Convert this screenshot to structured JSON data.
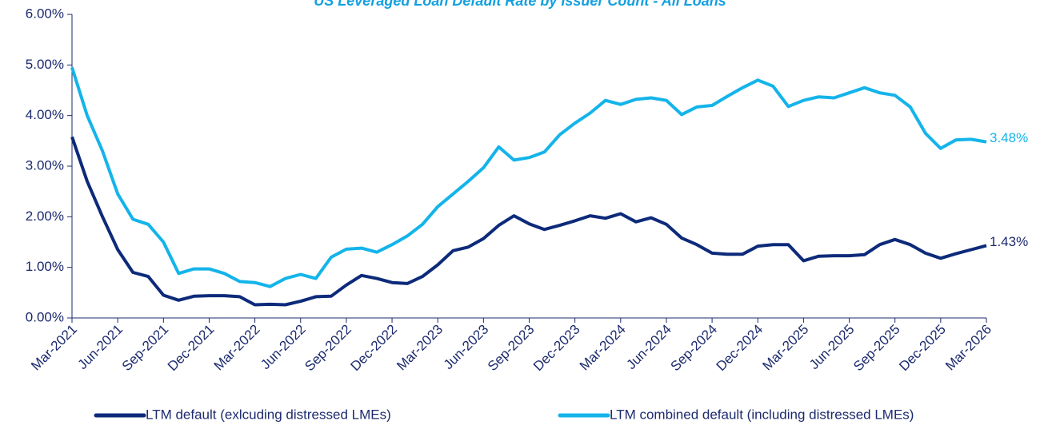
{
  "chart_data": {
    "type": "line",
    "title": "US Leveraged Loan Default Rate by Issuer Count - All Loans",
    "categories": [
      "Mar-2021",
      null,
      null,
      "Jun-2021",
      null,
      null,
      "Sep-2021",
      null,
      null,
      "Dec-2021",
      null,
      null,
      "Mar-2022",
      null,
      null,
      "Jun-2022",
      null,
      null,
      "Sep-2022",
      null,
      null,
      "Dec-2022",
      null,
      null,
      "Mar-2023",
      null,
      null,
      "Jun-2023",
      null,
      null,
      "Sep-2023",
      null,
      null,
      "Dec-2023",
      null,
      null,
      "Mar-2024",
      null,
      null,
      "Jun-2024",
      null,
      null,
      "Sep-2024",
      null,
      null,
      "Dec-2024",
      null,
      null,
      "Mar-2025",
      null,
      null,
      "Jun-2025",
      null,
      null,
      "Sep-2025",
      null,
      null,
      "Dec-2025",
      null,
      null,
      "Mar-2026"
    ],
    "series": [
      {
        "name": "LTM default (exlcuding distressed LMEs)",
        "color": "#0d2a7a",
        "values": [
          3.58,
          2.7,
          2.0,
          1.35,
          0.9,
          0.82,
          0.45,
          0.35,
          0.43,
          0.44,
          0.44,
          0.42,
          0.26,
          0.27,
          0.26,
          0.33,
          0.42,
          0.43,
          0.65,
          0.84,
          0.78,
          0.7,
          0.68,
          0.82,
          1.05,
          1.33,
          1.4,
          1.57,
          1.83,
          2.02,
          1.86,
          1.75,
          1.83,
          1.92,
          2.02,
          1.97,
          2.06,
          1.9,
          1.98,
          1.85,
          1.58,
          1.45,
          1.28,
          1.26,
          1.26,
          1.42,
          1.45,
          1.45,
          1.13,
          1.22,
          1.23,
          1.23,
          1.25,
          1.45,
          1.55,
          1.45,
          1.28,
          1.18,
          1.27,
          1.35,
          1.43
        ],
        "value_labels": [
          null,
          null,
          null,
          null,
          null,
          null,
          null,
          null,
          null,
          null,
          null,
          null,
          null,
          null,
          null,
          null,
          null,
          null,
          null,
          null,
          null,
          null,
          null,
          null,
          null,
          null,
          null,
          null,
          null,
          null,
          null,
          null,
          null,
          null,
          null,
          null,
          null,
          null,
          null,
          null,
          null,
          null,
          null,
          null,
          null,
          null,
          null,
          null,
          null,
          null,
          null,
          null,
          null,
          null,
          null,
          null,
          null,
          null,
          null,
          null,
          "1.43%"
        ]
      },
      {
        "name": "LTM combined default (including distressed LMEs)",
        "color": "#14b4ea",
        "values": [
          4.95,
          4.0,
          3.3,
          2.45,
          1.95,
          1.85,
          1.5,
          0.88,
          0.97,
          0.97,
          0.88,
          0.72,
          0.7,
          0.62,
          0.78,
          0.86,
          0.78,
          1.2,
          1.36,
          1.38,
          1.3,
          1.45,
          1.62,
          1.85,
          2.2,
          2.45,
          2.7,
          2.97,
          3.38,
          3.12,
          3.17,
          3.28,
          3.62,
          3.85,
          4.05,
          4.3,
          4.22,
          4.32,
          4.35,
          4.3,
          4.02,
          4.17,
          4.2,
          4.38,
          4.55,
          4.7,
          4.58,
          4.18,
          4.3,
          4.37,
          4.35,
          4.45,
          4.55,
          4.45,
          4.4,
          4.17,
          3.65,
          3.35,
          3.52,
          3.53,
          3.48
        ],
        "value_labels": [
          null,
          null,
          null,
          null,
          null,
          null,
          null,
          null,
          null,
          null,
          null,
          null,
          null,
          null,
          null,
          null,
          null,
          null,
          null,
          null,
          null,
          null,
          null,
          null,
          null,
          null,
          null,
          null,
          null,
          null,
          null,
          null,
          null,
          null,
          null,
          null,
          null,
          null,
          null,
          null,
          null,
          null,
          null,
          null,
          null,
          null,
          null,
          null,
          null,
          null,
          null,
          null,
          null,
          null,
          null,
          null,
          null,
          null,
          null,
          null,
          "3.48%"
        ]
      }
    ],
    "ylim": [
      0,
      6
    ],
    "yticks": [
      {
        "value": 0,
        "label": "0.00%"
      },
      {
        "value": 1,
        "label": "1.00%"
      },
      {
        "value": 2,
        "label": "2.00%"
      },
      {
        "value": 3,
        "label": "3.00%"
      },
      {
        "value": 4,
        "label": "4.00%"
      },
      {
        "value": 5,
        "label": "5.00%"
      },
      {
        "value": 6,
        "label": "6.00%"
      }
    ],
    "grid": false,
    "legend": "bottom"
  }
}
